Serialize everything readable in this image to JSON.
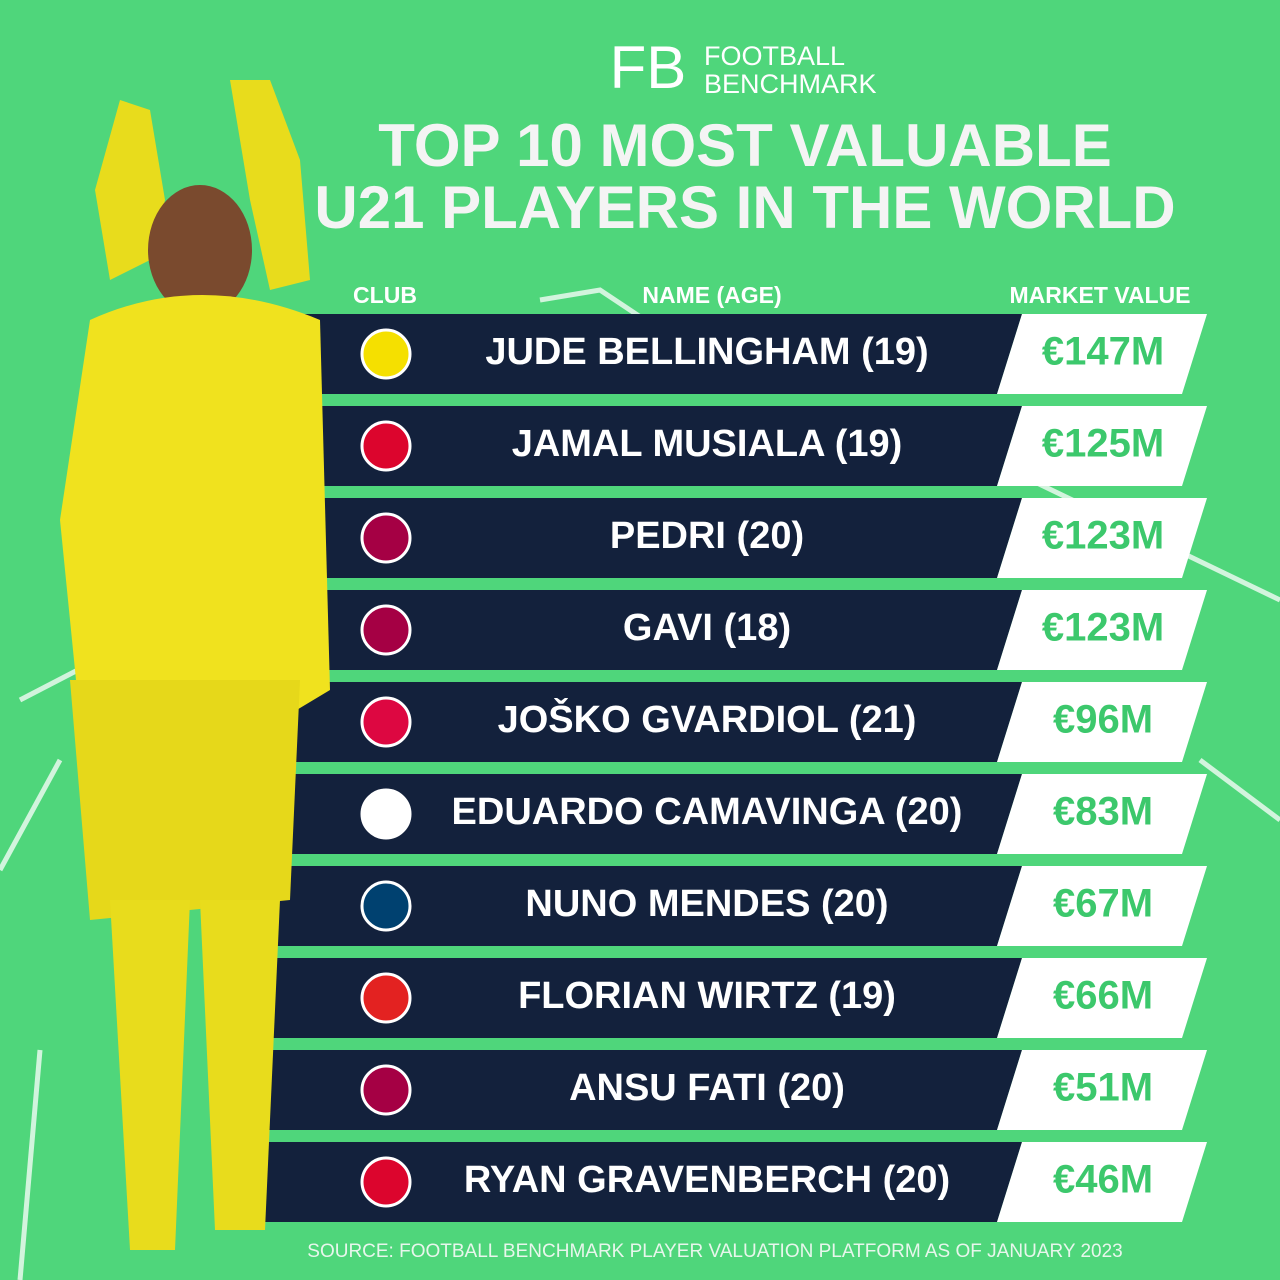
{
  "brand": {
    "mark": "FB",
    "line1": "FOOTBALL",
    "line2": "BENCHMARK"
  },
  "header": {
    "title_line1": "TOP 10 MOST VALUABLE",
    "title_line2": "U21 PLAYERS IN THE WORLD"
  },
  "table": {
    "columns": [
      "CLUB",
      "NAME (AGE)",
      "MARKET VALUE"
    ],
    "rows": [
      [
        "JUDE BELLINGHAM (19)",
        "€147M"
      ],
      [
        "JAMAL MUSIALA (19)",
        "€125M"
      ],
      [
        "PEDRI (20)",
        "€123M"
      ],
      [
        "GAVI (18)",
        "€123M"
      ],
      [
        "JOŠKO GVARDIOL (21)",
        "€96M"
      ],
      [
        "EDUARDO CAMAVINGA (20)",
        "€83M"
      ],
      [
        "NUNO MENDES (20)",
        "€67M"
      ],
      [
        "FLORIAN WIRTZ (19)",
        "€66M"
      ],
      [
        "ANSU FATI (20)",
        "€51M"
      ],
      [
        "RYAN GRAVENBERCH (20)",
        "€46M"
      ]
    ]
  },
  "footer": {
    "source": "SOURCE: FOOTBALL BENCHMARK PLAYER VALUATION PLATFORM AS OF JANUARY 2023"
  }
}
